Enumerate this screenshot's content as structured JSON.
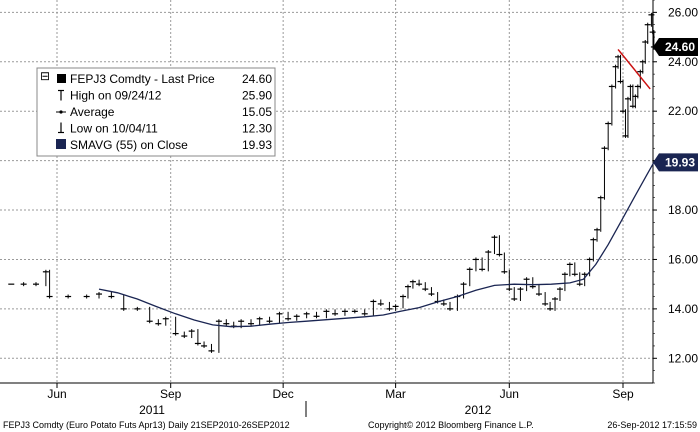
{
  "chart_data": {
    "type": "line",
    "ylim": [
      11,
      26.5
    ],
    "y_ticks": [
      12,
      14,
      16,
      18,
      20,
      22,
      24,
      26
    ],
    "y_tick_labels": [
      "12.00",
      "14.00",
      "16.00",
      "18.00",
      "20.00",
      "22.00",
      "24.00",
      "26.00"
    ],
    "x_ticks": [
      "Jun",
      "Sep",
      "Dec",
      "Mar",
      "Jun",
      "Sep"
    ],
    "years": [
      "2011",
      "2012"
    ],
    "grid": true,
    "legend_placement": "top-left",
    "legend": [
      {
        "label": "FEPJ3 Comdty - Last Price",
        "value": "24.60",
        "marker": "square-filled-icon"
      },
      {
        "label": "High on 09/24/12",
        "value": "25.90",
        "marker": "high-marker-icon"
      },
      {
        "label": "Average",
        "value": "15.05",
        "marker": "average-marker-icon"
      },
      {
        "label": "Low on 10/04/11",
        "value": "12.30",
        "marker": "low-marker-icon"
      },
      {
        "label": "SMAVG (55) on Close",
        "value": "19.93",
        "marker": "square-navy-icon"
      }
    ],
    "last_price_label": "24.60",
    "sma_label": "19.93",
    "colors": {
      "price": "#000000",
      "sma": "#1a2552",
      "trendline": "#cc1111",
      "grid": "#9a9a9a",
      "sma_box": "#1a2552"
    },
    "series": [
      {
        "name": "FEPJ3 Comdty - Last Price",
        "points": [
          [
            "2011-04-25",
            15.0
          ],
          [
            "2011-05-05",
            15.0
          ],
          [
            "2011-05-15",
            15.0
          ],
          [
            "2011-05-23",
            15.5
          ],
          [
            "2011-05-26",
            14.5
          ],
          [
            "2011-06-10",
            14.5
          ],
          [
            "2011-06-25",
            14.5
          ],
          [
            "2011-07-05",
            14.6
          ],
          [
            "2011-07-15",
            14.5
          ],
          [
            "2011-07-25",
            14.0
          ],
          [
            "2011-08-05",
            14.0
          ],
          [
            "2011-08-15",
            13.5
          ],
          [
            "2011-08-22",
            13.4
          ],
          [
            "2011-08-28",
            13.6
          ],
          [
            "2011-09-05",
            13.0
          ],
          [
            "2011-09-12",
            12.9
          ],
          [
            "2011-09-18",
            13.1
          ],
          [
            "2011-09-23",
            12.6
          ],
          [
            "2011-09-28",
            12.5
          ],
          [
            "2011-10-04",
            12.3
          ],
          [
            "2011-10-10",
            13.5
          ],
          [
            "2011-10-16",
            13.4
          ],
          [
            "2011-10-22",
            13.3
          ],
          [
            "2011-10-28",
            13.5
          ],
          [
            "2011-11-05",
            13.4
          ],
          [
            "2011-11-12",
            13.6
          ],
          [
            "2011-11-20",
            13.5
          ],
          [
            "2011-11-28",
            13.8
          ],
          [
            "2011-12-05",
            13.6
          ],
          [
            "2011-12-12",
            13.7
          ],
          [
            "2011-12-20",
            13.8
          ],
          [
            "2011-12-28",
            13.7
          ],
          [
            "2012-01-05",
            13.9
          ],
          [
            "2012-01-12",
            13.8
          ],
          [
            "2012-01-20",
            13.9
          ],
          [
            "2012-01-28",
            13.9
          ],
          [
            "2012-02-05",
            13.8
          ],
          [
            "2012-02-12",
            14.3
          ],
          [
            "2012-02-18",
            14.2
          ],
          [
            "2012-02-25",
            14.0
          ],
          [
            "2012-03-01",
            14.1
          ],
          [
            "2012-03-07",
            14.5
          ],
          [
            "2012-03-11",
            14.9
          ],
          [
            "2012-03-15",
            15.1
          ],
          [
            "2012-03-20",
            15.0
          ],
          [
            "2012-03-25",
            14.8
          ],
          [
            "2012-03-30",
            14.6
          ],
          [
            "2012-04-04",
            14.3
          ],
          [
            "2012-04-09",
            14.2
          ],
          [
            "2012-04-14",
            14.0
          ],
          [
            "2012-04-20",
            14.5
          ],
          [
            "2012-04-25",
            15.0
          ],
          [
            "2012-04-30",
            15.6
          ],
          [
            "2012-05-05",
            16.0
          ],
          [
            "2012-05-10",
            15.6
          ],
          [
            "2012-05-15",
            16.3
          ],
          [
            "2012-05-20",
            16.9
          ],
          [
            "2012-05-24",
            16.2
          ],
          [
            "2012-05-28",
            15.5
          ],
          [
            "2012-06-01",
            14.8
          ],
          [
            "2012-06-05",
            14.4
          ],
          [
            "2012-06-10",
            14.8
          ],
          [
            "2012-06-15",
            15.2
          ],
          [
            "2012-06-20",
            14.9
          ],
          [
            "2012-06-25",
            14.6
          ],
          [
            "2012-06-30",
            14.2
          ],
          [
            "2012-07-04",
            14.0
          ],
          [
            "2012-07-08",
            14.4
          ],
          [
            "2012-07-12",
            14.8
          ],
          [
            "2012-07-16",
            15.4
          ],
          [
            "2012-07-20",
            15.8
          ],
          [
            "2012-07-24",
            15.4
          ],
          [
            "2012-07-28",
            15.0
          ],
          [
            "2012-08-01",
            15.4
          ],
          [
            "2012-08-05",
            16.0
          ],
          [
            "2012-08-08",
            16.8
          ],
          [
            "2012-08-11",
            17.2
          ],
          [
            "2012-08-14",
            18.5
          ],
          [
            "2012-08-17",
            20.5
          ],
          [
            "2012-08-20",
            21.5
          ],
          [
            "2012-08-23",
            23.0
          ],
          [
            "2012-08-26",
            23.8
          ],
          [
            "2012-08-28",
            24.2
          ],
          [
            "2012-08-30",
            23.2
          ],
          [
            "2012-09-01",
            22.0
          ],
          [
            "2012-09-03",
            21.0
          ],
          [
            "2012-09-05",
            22.5
          ],
          [
            "2012-09-07",
            23.0
          ],
          [
            "2012-09-09",
            22.2
          ],
          [
            "2012-09-11",
            22.6
          ],
          [
            "2012-09-13",
            23.0
          ],
          [
            "2012-09-15",
            23.6
          ],
          [
            "2012-09-17",
            24.0
          ],
          [
            "2012-09-19",
            24.8
          ],
          [
            "2012-09-21",
            25.5
          ],
          [
            "2012-09-24",
            25.9
          ],
          [
            "2012-09-25",
            25.2
          ],
          [
            "2012-09-26",
            24.6
          ]
        ]
      },
      {
        "name": "SMAVG (55) on Close",
        "points": [
          [
            "2011-07-05",
            14.8
          ],
          [
            "2011-07-20",
            14.65
          ],
          [
            "2011-08-05",
            14.4
          ],
          [
            "2011-08-20",
            14.1
          ],
          [
            "2011-09-05",
            13.8
          ],
          [
            "2011-09-20",
            13.55
          ],
          [
            "2011-10-05",
            13.35
          ],
          [
            "2011-10-20",
            13.28
          ],
          [
            "2011-11-05",
            13.3
          ],
          [
            "2011-11-20",
            13.38
          ],
          [
            "2011-12-05",
            13.45
          ],
          [
            "2011-12-20",
            13.5
          ],
          [
            "2012-01-05",
            13.56
          ],
          [
            "2012-01-20",
            13.62
          ],
          [
            "2012-02-05",
            13.68
          ],
          [
            "2012-02-20",
            13.75
          ],
          [
            "2012-03-05",
            13.9
          ],
          [
            "2012-03-20",
            14.05
          ],
          [
            "2012-04-05",
            14.3
          ],
          [
            "2012-04-20",
            14.5
          ],
          [
            "2012-05-05",
            14.75
          ],
          [
            "2012-05-20",
            14.95
          ],
          [
            "2012-06-05",
            15.0
          ],
          [
            "2012-06-20",
            14.98
          ],
          [
            "2012-07-05",
            15.0
          ],
          [
            "2012-07-20",
            15.05
          ],
          [
            "2012-07-31",
            15.2
          ],
          [
            "2012-08-10",
            15.8
          ],
          [
            "2012-08-20",
            16.6
          ],
          [
            "2012-08-30",
            17.5
          ],
          [
            "2012-09-10",
            18.5
          ],
          [
            "2012-09-20",
            19.4
          ],
          [
            "2012-09-26",
            19.93
          ]
        ]
      },
      {
        "name": "Trendline",
        "points": [
          [
            "2012-08-28",
            24.5
          ],
          [
            "2012-09-23",
            22.9
          ]
        ]
      }
    ]
  },
  "footer": {
    "left": "FEPJ3 Comdty (Euro Potato Futs  Apr13) Daily 21SEP2010-26SEP2012",
    "center": "Copyright© 2012 Bloomberg Finance L.P.",
    "right": "26-Sep-2012 17:15:59"
  }
}
